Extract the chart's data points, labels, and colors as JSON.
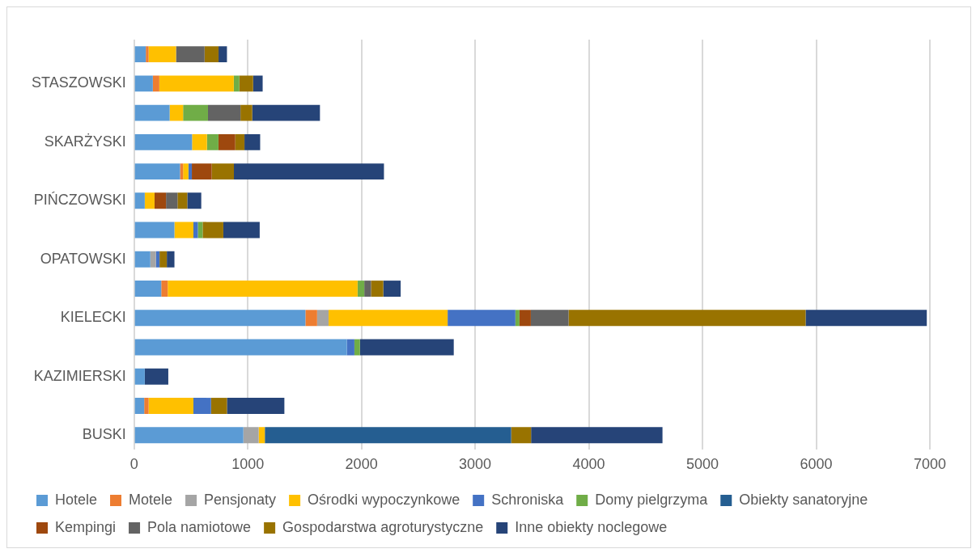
{
  "chart_data": {
    "type": "bar",
    "orientation": "horizontal",
    "stacked": true,
    "grid": "x",
    "legend": "bottom",
    "categories": [
      null,
      "STASZOWSKI",
      null,
      "SKARŻYSKI",
      null,
      "PIŃCZOWSKI",
      null,
      "OPATOWSKI",
      null,
      "KIELECKI",
      null,
      "KAZIMIERSKI",
      null,
      "BUSKI"
    ],
    "xlim": [
      0,
      7000
    ],
    "xticks": [
      0,
      1000,
      2000,
      3000,
      4000,
      5000,
      6000,
      7000
    ],
    "series": [
      {
        "name": "Hotele",
        "color": "#5b9bd5",
        "values": [
          103,
          165,
          313,
          510,
          404,
          94,
          355,
          143,
          239,
          1507,
          1872,
          94,
          89,
          961
        ]
      },
      {
        "name": "Motele",
        "color": "#ed7d31",
        "values": [
          25,
          57,
          0,
          0,
          27,
          0,
          0,
          0,
          57,
          103,
          0,
          0,
          39,
          0
        ]
      },
      {
        "name": "Pensjonaty",
        "color": "#a5a5a5",
        "values": [
          0,
          0,
          0,
          0,
          0,
          0,
          0,
          49,
          0,
          101,
          0,
          0,
          0,
          135
        ]
      },
      {
        "name": "Ośrodki wypoczynkowe",
        "color": "#ffc000",
        "values": [
          241,
          655,
          118,
          131,
          47,
          86,
          167,
          0,
          1670,
          1047,
          0,
          0,
          394,
          54
        ]
      },
      {
        "name": "Schroniska",
        "color": "#4472c4",
        "values": [
          0,
          0,
          0,
          0,
          30,
          0,
          39,
          32,
          0,
          596,
          66,
          0,
          155,
          0
        ]
      },
      {
        "name": "Domy pielgrzyma",
        "color": "#70ad47",
        "values": [
          0,
          49,
          219,
          101,
          0,
          0,
          42,
          0,
          59,
          36,
          49,
          0,
          0,
          0
        ]
      },
      {
        "name": "Obiekty sanatoryjne",
        "color": "#255e91",
        "values": [
          0,
          0,
          0,
          0,
          0,
          0,
          0,
          0,
          0,
          0,
          0,
          0,
          0,
          2167
        ]
      },
      {
        "name": "Kempingi",
        "color": "#9e480e",
        "values": [
          0,
          0,
          0,
          148,
          175,
          101,
          0,
          0,
          0,
          100,
          0,
          0,
          0,
          0
        ]
      },
      {
        "name": "Pola namiotowe",
        "color": "#636363",
        "values": [
          251,
          0,
          286,
          0,
          0,
          101,
          0,
          0,
          59,
          332,
          0,
          0,
          0,
          0
        ]
      },
      {
        "name": "Gospodarstwa agroturystyczne",
        "color": "#997300",
        "values": [
          123,
          121,
          103,
          81,
          195,
          86,
          182,
          64,
          108,
          2085,
          0,
          0,
          140,
          175
        ]
      },
      {
        "name": "Inne obiekty noclegowe",
        "color": "#264478",
        "values": [
          74,
          84,
          596,
          138,
          1320,
          123,
          320,
          67,
          153,
          1066,
          825,
          207,
          505,
          1156
        ]
      }
    ]
  }
}
